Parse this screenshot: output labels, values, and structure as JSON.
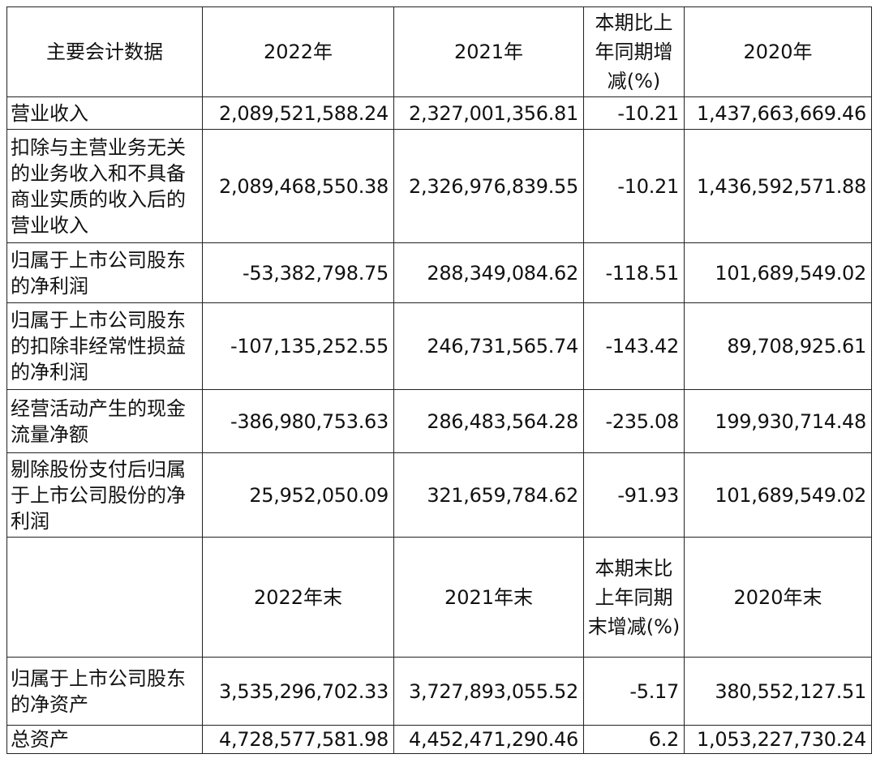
{
  "header1": [
    "主要会计数据",
    "2022年",
    "2021年",
    "本期比上年同期增减(%)",
    "2020年"
  ],
  "rows1": [
    {
      "label": "营业收入",
      "v2022": "2,089,521,588.24",
      "v2021": "2,327,001,356.81",
      "change": "-10.21",
      "v2020": "1,437,663,669.46"
    },
    {
      "label": "扣除与主营业务无关的业务收入和不具备商业实质的收入后的营业收入",
      "v2022": "2,089,468,550.38",
      "v2021": "2,326,976,839.55",
      "change": "-10.21",
      "v2020": "1,436,592,571.88"
    },
    {
      "label": "归属于上市公司股东的净利润",
      "v2022": "-53,382,798.75",
      "v2021": "288,349,084.62",
      "change": "-118.51",
      "v2020": "101,689,549.02"
    },
    {
      "label": "归属于上市公司股东的扣除非经常性损益的净利润",
      "v2022": "-107,135,252.55",
      "v2021": "246,731,565.74",
      "change": "-143.42",
      "v2020": "89,708,925.61"
    },
    {
      "label": "经营活动产生的现金流量净额",
      "v2022": "-386,980,753.63",
      "v2021": "286,483,564.28",
      "change": "-235.08",
      "v2020": "199,930,714.48"
    },
    {
      "label": "剔除股份支付后归属于上市公司股份的净利润",
      "v2022": "25,952,050.09",
      "v2021": "321,659,784.62",
      "change": "-91.93",
      "v2020": "101,689,549.02"
    }
  ],
  "header2": [
    "",
    "2022年末",
    "2021年末",
    "本期末比上年同期末增减(%)",
    "2020年末"
  ],
  "rows2": [
    {
      "label": "归属于上市公司股东的净资产",
      "v2022": "3,535,296,702.33",
      "v2021": "3,727,893,055.52",
      "change": "-5.17",
      "v2020": "380,552,127.51"
    },
    {
      "label": "总资产",
      "v2022": "4,728,577,581.98",
      "v2021": "4,452,471,290.46",
      "change": "6.2",
      "v2020": "1,053,227,730.24"
    }
  ]
}
